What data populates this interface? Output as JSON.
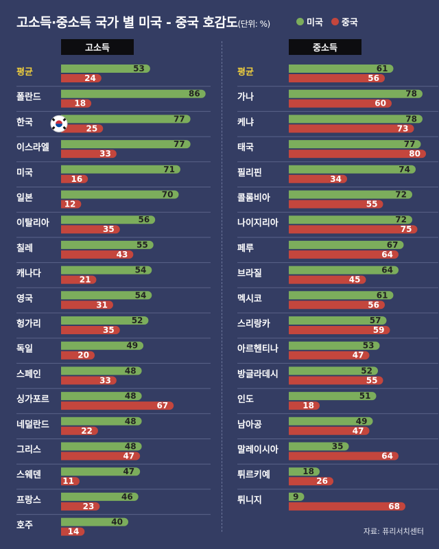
{
  "title": "고소득·중소득 국가 별 미국 - 중국 호감도",
  "unit": "(단위: %)",
  "source": "자료: 퓨리서치센터",
  "colors": {
    "usa": "#7cad5c",
    "china": "#c4463d",
    "background": "#343d63",
    "highlight": "#f4d23c"
  },
  "legend": [
    {
      "name": "미국",
      "color": "#7cad5c"
    },
    {
      "name": "중국",
      "color": "#c4463d"
    }
  ],
  "chart_data": [
    {
      "type": "bar",
      "panel": "고소득",
      "categories": [
        "평균",
        "폴란드",
        "한국",
        "이스라엘",
        "미국",
        "일본",
        "이탈리아",
        "칠레",
        "캐나다",
        "영국",
        "헝가리",
        "독일",
        "스페인",
        "싱가포르",
        "네덜란드",
        "그리스",
        "스웨덴",
        "프랑스",
        "호주"
      ],
      "series": [
        {
          "name": "미국",
          "values": [
            53,
            86,
            77,
            77,
            71,
            70,
            56,
            55,
            54,
            54,
            52,
            49,
            48,
            48,
            48,
            48,
            47,
            46,
            40
          ]
        },
        {
          "name": "중국",
          "values": [
            24,
            18,
            25,
            33,
            16,
            12,
            35,
            43,
            21,
            31,
            35,
            20,
            33,
            67,
            22,
            47,
            11,
            23,
            14
          ]
        }
      ],
      "flag_row": "한국",
      "flag_icon": "korea-flag-icon"
    },
    {
      "type": "bar",
      "panel": "중소득",
      "categories": [
        "평균",
        "가나",
        "케냐",
        "태국",
        "필리핀",
        "콜롬비아",
        "나이지리아",
        "페루",
        "브라질",
        "멕시코",
        "스리랑카",
        "아르헨티나",
        "방글라데시",
        "인도",
        "남아공",
        "말레이시아",
        "튀르키예",
        "튀니지"
      ],
      "series": [
        {
          "name": "미국",
          "values": [
            61,
            78,
            78,
            77,
            74,
            72,
            72,
            67,
            64,
            61,
            57,
            53,
            52,
            51,
            49,
            35,
            18,
            9
          ]
        },
        {
          "name": "중국",
          "values": [
            56,
            60,
            73,
            80,
            34,
            55,
            75,
            64,
            45,
            56,
            59,
            47,
            55,
            18,
            47,
            64,
            26,
            68
          ]
        }
      ]
    }
  ]
}
